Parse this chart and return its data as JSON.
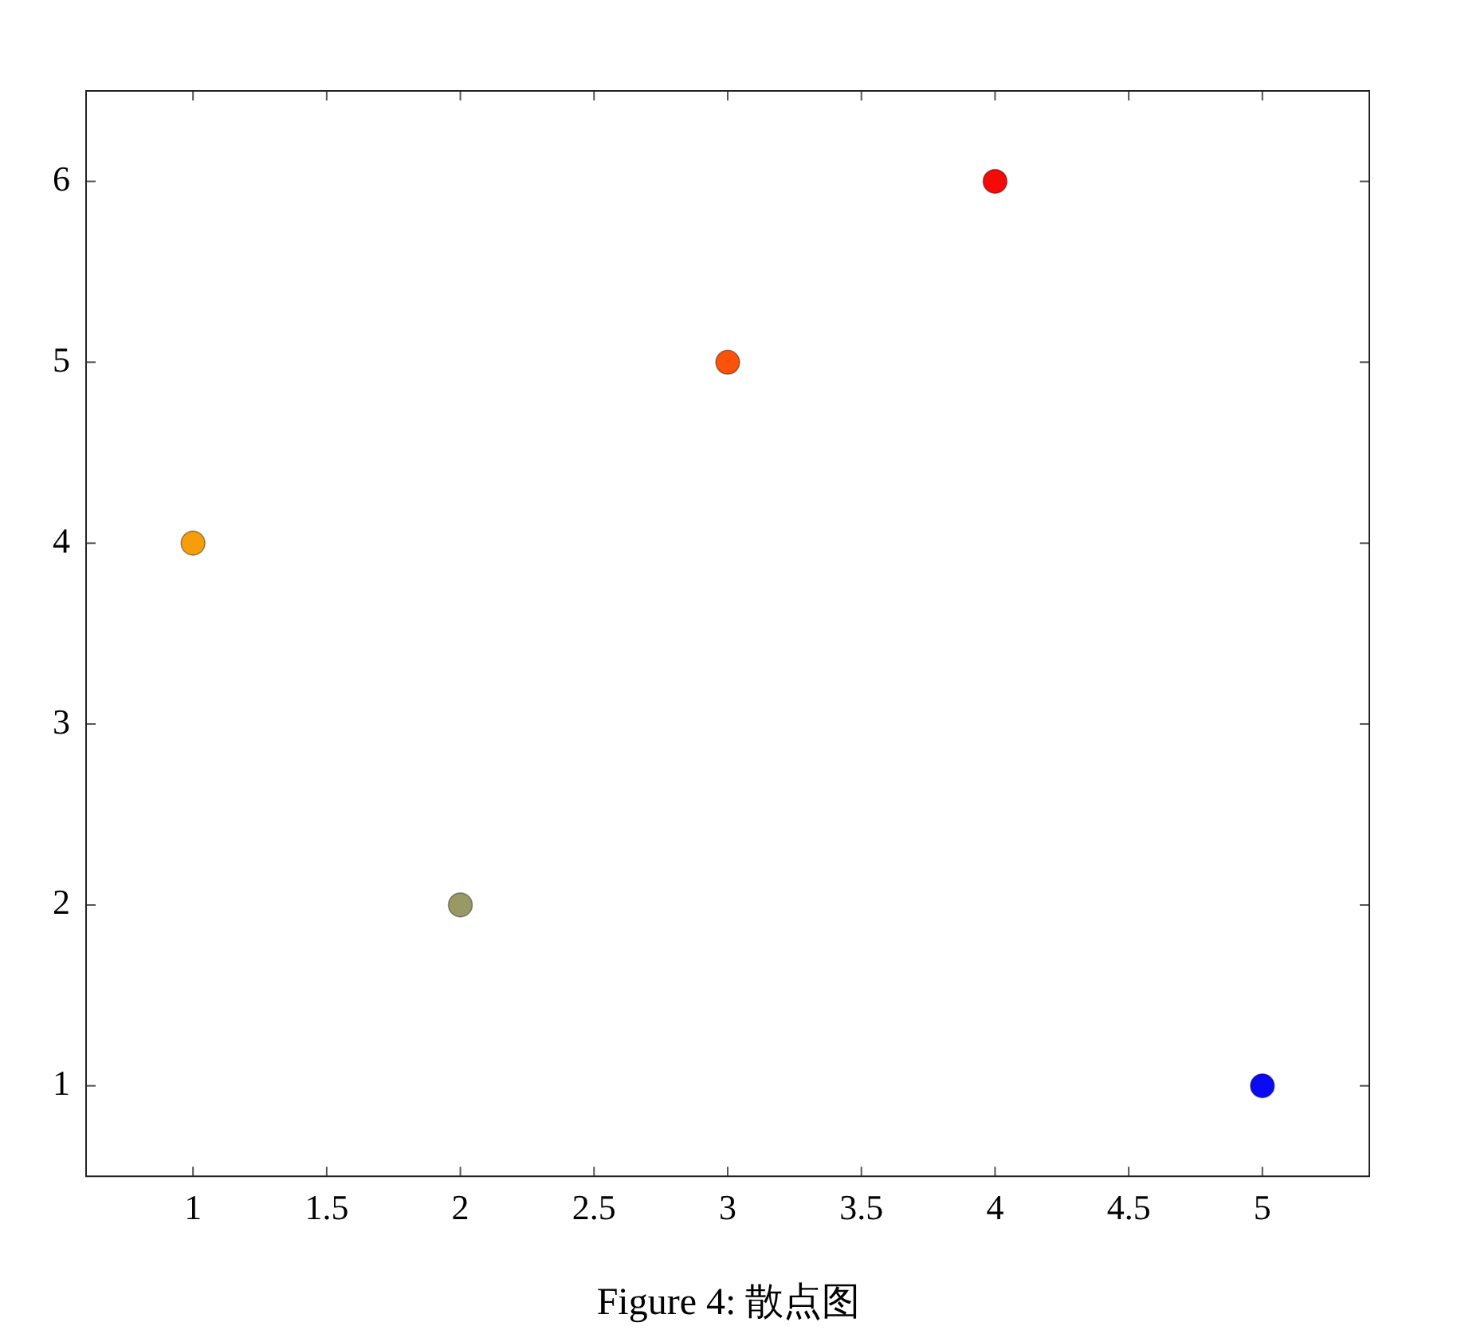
{
  "chart_data": {
    "type": "scatter",
    "x": [
      1,
      2,
      3,
      4,
      5
    ],
    "values": [
      4,
      2,
      5,
      6,
      1
    ],
    "colors": [
      "#f59d0a",
      "#999966",
      "#fa520a",
      "#f50a0a",
      "#0a0af5"
    ],
    "xlim": [
      0.6,
      5.4
    ],
    "xticks": [
      1,
      1.5,
      2,
      2.5,
      3,
      3.5,
      4,
      4.5,
      5
    ],
    "ylim": [
      0.5,
      6.5
    ],
    "yticks": [
      1,
      2,
      3,
      4,
      5,
      6
    ],
    "grid": false,
    "legend": false,
    "marker": "circle",
    "annotations": [
      "Figure 4: 散点图"
    ]
  }
}
